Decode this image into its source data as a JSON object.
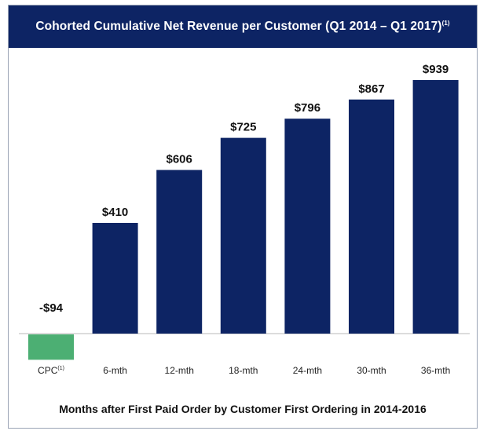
{
  "chart_data": {
    "type": "bar",
    "title": "Cohorted Cumulative Net Revenue per Customer (Q1 2014 – Q1 2017)",
    "title_footnote": "(1)",
    "xlabel": "Months after First Paid Order by Customer First Ordering in 2014-2016",
    "ylabel": "",
    "categories": [
      "CPC",
      "6-mth",
      "12-mth",
      "18-mth",
      "24-mth",
      "30-mth",
      "36-mth"
    ],
    "category_footnotes": [
      "(1)",
      "",
      "",
      "",
      "",
      "",
      ""
    ],
    "values": [
      -94,
      410,
      606,
      725,
      796,
      867,
      939
    ],
    "data_labels": [
      "-$94",
      "$410",
      "$606",
      "$725",
      "$796",
      "$867",
      "$939"
    ],
    "ylim": [
      -94,
      939
    ],
    "grid": false,
    "legend": "none",
    "colors": {
      "positive": "#0d2464",
      "negative": "#4caf73",
      "title_bg": "#0d2464"
    }
  }
}
